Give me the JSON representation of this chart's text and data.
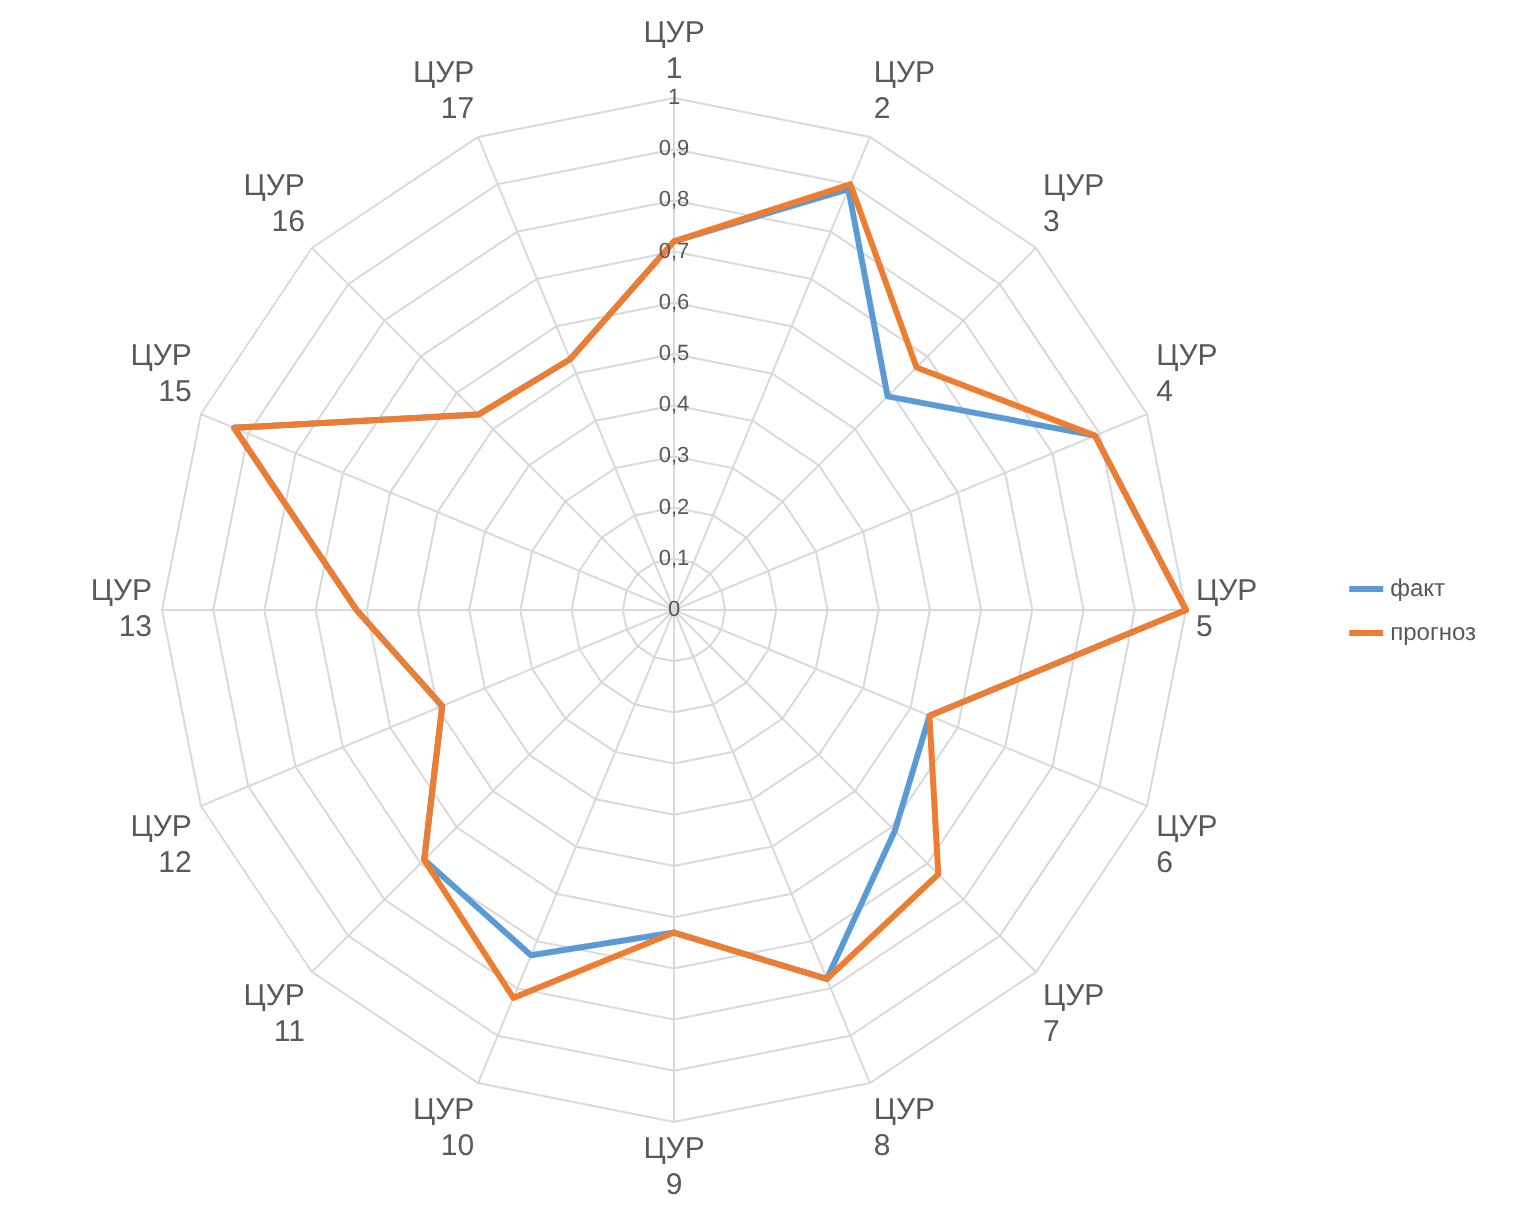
{
  "chart_data": {
    "type": "radar",
    "categories": [
      "ЦУР 1",
      "ЦУР 2",
      "ЦУР 3",
      "ЦУР 4",
      "ЦУР 5",
      "ЦУР 6",
      "ЦУР 7",
      "ЦУР 8",
      "ЦУР 9",
      "ЦУР 10",
      "ЦУР 11",
      "ЦУР 12",
      "ЦУР 13",
      "ЦУР 15",
      "ЦУР 16",
      "ЦУР 17"
    ],
    "series": [
      {
        "name": "факт",
        "color": "#5b9bd5",
        "values": [
          0.72,
          0.89,
          0.59,
          0.89,
          1.0,
          0.54,
          0.61,
          0.78,
          0.63,
          0.73,
          0.69,
          0.49,
          0.62,
          0.93,
          0.54,
          0.53
        ]
      },
      {
        "name": "прогноз",
        "color": "#ed7d31",
        "values": [
          0.72,
          0.9,
          0.67,
          0.89,
          1.0,
          0.54,
          0.73,
          0.78,
          0.63,
          0.82,
          0.69,
          0.49,
          0.62,
          0.93,
          0.54,
          0.53
        ]
      }
    ],
    "ylim": [
      0,
      1
    ],
    "yticks": [
      0,
      {
        "value": 0.1,
        "label": "0,1"
      },
      {
        "value": 0.2,
        "label": "0,2"
      },
      {
        "value": 0.3,
        "label": "0,3"
      },
      {
        "value": 0.4,
        "label": "0,4"
      },
      {
        "value": 0.5,
        "label": "0,5"
      },
      {
        "value": 0.6,
        "label": "0,6"
      },
      {
        "value": 0.7,
        "label": "0,7"
      },
      {
        "value": 0.8,
        "label": "0,8"
      },
      {
        "value": 0.9,
        "label": "0,9"
      },
      1
    ],
    "grid": true,
    "legend": "right",
    "marker": "none",
    "line_style": "solid"
  }
}
